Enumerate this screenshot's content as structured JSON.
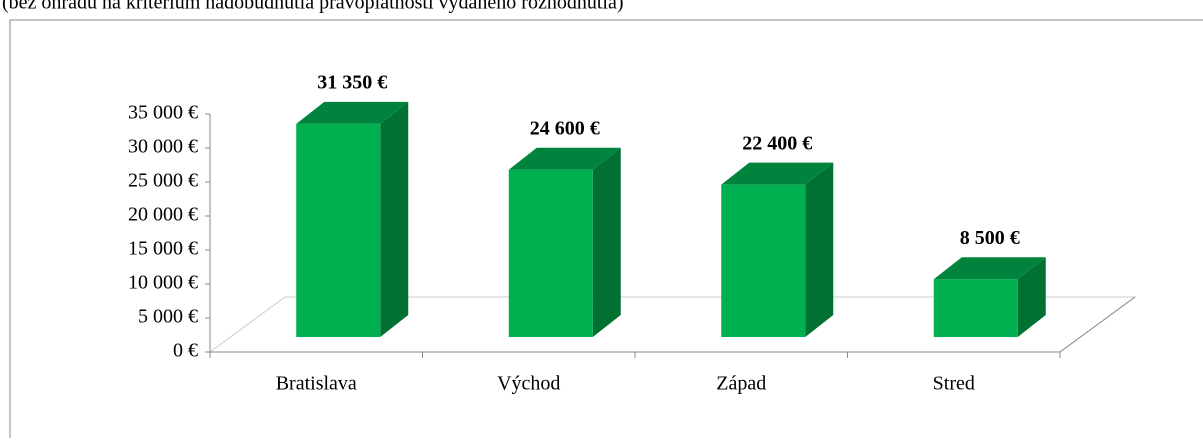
{
  "chart_data": {
    "type": "bar3d",
    "subtitle": "(bez ohradu na kritérium nadobudnutia právoplatnosti vydaného rozhodnutia)",
    "categories": [
      "Bratislava",
      "Východ",
      "Západ",
      "Stred"
    ],
    "values": [
      31350,
      24600,
      22400,
      8500
    ],
    "value_labels": [
      "31 350 €",
      "24 600 €",
      "22 400 €",
      "8 500 €"
    ],
    "color": "#00b050",
    "ylim": [
      0,
      35000
    ],
    "yticks": [
      {
        "value": 0,
        "label": "0 €"
      },
      {
        "value": 5000,
        "label": "5 000 €"
      },
      {
        "value": 10000,
        "label": "10 000 €"
      },
      {
        "value": 15000,
        "label": "15 000 €"
      },
      {
        "value": 20000,
        "label": "20 000 €"
      },
      {
        "value": 25000,
        "label": "25 000 €"
      },
      {
        "value": 30000,
        "label": "30 000 €"
      },
      {
        "value": 35000,
        "label": "35 000 €"
      }
    ]
  }
}
